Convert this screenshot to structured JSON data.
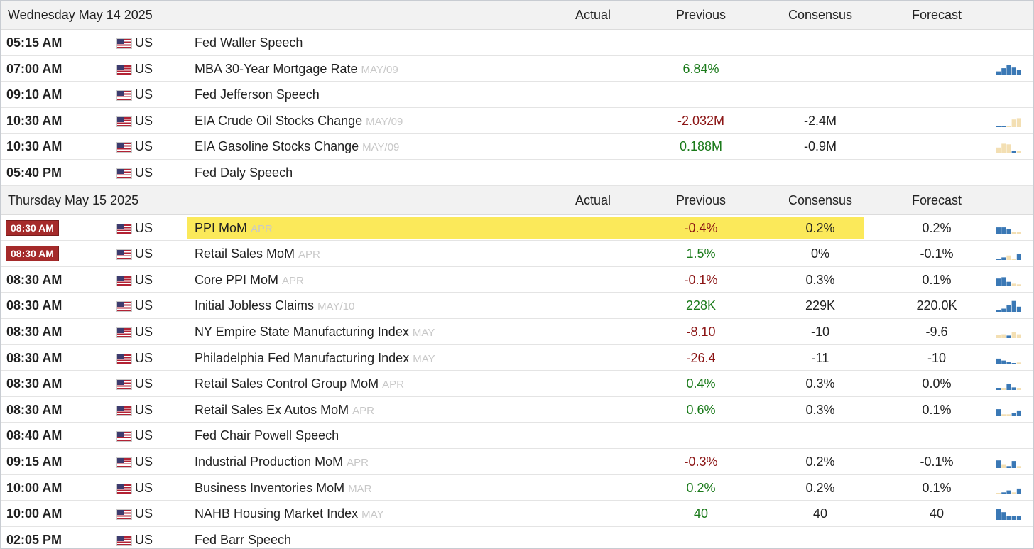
{
  "columns": {
    "actual": "Actual",
    "previous": "Previous",
    "consensus": "Consensus",
    "forecast": "Forecast"
  },
  "colors": {
    "positive": "#1a7a1a",
    "negative": "#8b1414",
    "highlight": "#fbe95a",
    "live_time": "#a52a2a",
    "spark_blue": "#3a78b5",
    "spark_tan": "#f3dfb3"
  },
  "days": [
    {
      "date": "Wednesday May 14 2025",
      "rows": [
        {
          "time": "05:15 AM",
          "country": "US",
          "event": "Fed Waller Speech",
          "ref": "",
          "previous": "",
          "previous_sentiment": "",
          "consensus": "",
          "forecast": "",
          "spark": []
        },
        {
          "time": "07:00 AM",
          "country": "US",
          "event": "MBA 30-Year Mortgage Rate",
          "ref": "MAY/09",
          "previous": "6.84%",
          "previous_sentiment": "pos",
          "consensus": "",
          "forecast": "",
          "spark": [
            {
              "v": 0.3,
              "c": "b"
            },
            {
              "v": 0.55,
              "c": "b"
            },
            {
              "v": 0.8,
              "c": "b"
            },
            {
              "v": 0.6,
              "c": "b"
            },
            {
              "v": 0.4,
              "c": "b"
            }
          ]
        },
        {
          "time": "09:10 AM",
          "country": "US",
          "event": "Fed Jefferson Speech",
          "ref": "",
          "previous": "",
          "previous_sentiment": "",
          "consensus": "",
          "forecast": "",
          "spark": []
        },
        {
          "time": "10:30 AM",
          "country": "US",
          "event": "EIA Crude Oil Stocks Change",
          "ref": "MAY/09",
          "previous": "-2.032M",
          "previous_sentiment": "neg",
          "consensus": "-2.4M",
          "forecast": "",
          "spark": [
            {
              "v": 0.1,
              "c": "b"
            },
            {
              "v": 0.1,
              "c": "b"
            },
            {
              "v": 0.0,
              "c": "t"
            },
            {
              "v": 0.6,
              "c": "t"
            },
            {
              "v": 0.7,
              "c": "t"
            }
          ]
        },
        {
          "time": "10:30 AM",
          "country": "US",
          "event": "EIA Gasoline Stocks Change",
          "ref": "MAY/09",
          "previous": "0.188M",
          "previous_sentiment": "pos",
          "consensus": "-0.9M",
          "forecast": "",
          "spark": [
            {
              "v": 0.4,
              "c": "t"
            },
            {
              "v": 0.7,
              "c": "t"
            },
            {
              "v": 0.65,
              "c": "t"
            },
            {
              "v": 0.1,
              "c": "b"
            },
            {
              "v": 0.0,
              "c": "t"
            }
          ]
        },
        {
          "time": "05:40 PM",
          "country": "US",
          "event": "Fed Daly Speech",
          "ref": "",
          "previous": "",
          "previous_sentiment": "",
          "consensus": "",
          "forecast": "",
          "spark": []
        }
      ]
    },
    {
      "date": "Thursday May 15 2025",
      "rows": [
        {
          "time": "08:30 AM",
          "live": true,
          "highlight": true,
          "country": "US",
          "event": "PPI MoM",
          "ref": "APR",
          "previous": "-0.4%",
          "previous_sentiment": "neg",
          "consensus": "0.2%",
          "forecast": "0.2%",
          "spark": [
            {
              "v": 0.55,
              "c": "b"
            },
            {
              "v": 0.55,
              "c": "b"
            },
            {
              "v": 0.4,
              "c": "b"
            },
            {
              "v": 0.2,
              "c": "t"
            },
            {
              "v": 0.2,
              "c": "t"
            }
          ]
        },
        {
          "time": "08:30 AM",
          "live": true,
          "country": "US",
          "event": "Retail Sales MoM",
          "ref": "APR",
          "previous": "1.5%",
          "previous_sentiment": "pos",
          "consensus": "0%",
          "forecast": "-0.1%",
          "spark": [
            {
              "v": 0.1,
              "c": "b"
            },
            {
              "v": 0.2,
              "c": "b"
            },
            {
              "v": 0.35,
              "c": "t"
            },
            {
              "v": 0.0,
              "c": "t"
            },
            {
              "v": 0.5,
              "c": "b"
            }
          ]
        },
        {
          "time": "08:30 AM",
          "country": "US",
          "event": "Core PPI MoM",
          "ref": "APR",
          "previous": "-0.1%",
          "previous_sentiment": "neg",
          "consensus": "0.3%",
          "forecast": "0.1%",
          "spark": [
            {
              "v": 0.6,
              "c": "b"
            },
            {
              "v": 0.7,
              "c": "b"
            },
            {
              "v": 0.35,
              "c": "b"
            },
            {
              "v": 0.2,
              "c": "t"
            },
            {
              "v": 0.15,
              "c": "t"
            }
          ]
        },
        {
          "time": "08:30 AM",
          "country": "US",
          "event": "Initial Jobless Claims",
          "ref": "MAY/10",
          "previous": "228K",
          "previous_sentiment": "pos",
          "consensus": "229K",
          "forecast": "220.0K",
          "spark": [
            {
              "v": 0.1,
              "c": "b"
            },
            {
              "v": 0.25,
              "c": "b"
            },
            {
              "v": 0.55,
              "c": "b"
            },
            {
              "v": 0.85,
              "c": "b"
            },
            {
              "v": 0.4,
              "c": "b"
            }
          ]
        },
        {
          "time": "08:30 AM",
          "country": "US",
          "event": "NY Empire State Manufacturing Index",
          "ref": "MAY",
          "previous": "-8.10",
          "previous_sentiment": "neg",
          "consensus": "-10",
          "forecast": "-9.6",
          "spark": [
            {
              "v": 0.25,
              "c": "t"
            },
            {
              "v": 0.3,
              "c": "t"
            },
            {
              "v": 0.2,
              "c": "b"
            },
            {
              "v": 0.45,
              "c": "t"
            },
            {
              "v": 0.3,
              "c": "t"
            }
          ]
        },
        {
          "time": "08:30 AM",
          "country": "US",
          "event": "Philadelphia Fed Manufacturing Index",
          "ref": "MAY",
          "previous": "-26.4",
          "previous_sentiment": "neg",
          "consensus": "-11",
          "forecast": "-10",
          "spark": [
            {
              "v": 0.45,
              "c": "b"
            },
            {
              "v": 0.3,
              "c": "b"
            },
            {
              "v": 0.2,
              "c": "b"
            },
            {
              "v": 0.1,
              "c": "b"
            },
            {
              "v": 0.15,
              "c": "t"
            }
          ]
        },
        {
          "time": "08:30 AM",
          "country": "US",
          "event": "Retail Sales Control Group MoM",
          "ref": "APR",
          "previous": "0.4%",
          "previous_sentiment": "pos",
          "consensus": "0.3%",
          "forecast": "0.0%",
          "spark": [
            {
              "v": 0.15,
              "c": "b"
            },
            {
              "v": 0.15,
              "c": "t"
            },
            {
              "v": 0.45,
              "c": "b"
            },
            {
              "v": 0.2,
              "c": "b"
            },
            {
              "v": 0.1,
              "c": "t"
            }
          ]
        },
        {
          "time": "08:30 AM",
          "country": "US",
          "event": "Retail Sales Ex Autos MoM",
          "ref": "APR",
          "previous": "0.6%",
          "previous_sentiment": "pos",
          "consensus": "0.3%",
          "forecast": "0.1%",
          "spark": [
            {
              "v": 0.55,
              "c": "b"
            },
            {
              "v": 0.15,
              "c": "t"
            },
            {
              "v": 0.15,
              "c": "t"
            },
            {
              "v": 0.25,
              "c": "b"
            },
            {
              "v": 0.45,
              "c": "b"
            }
          ]
        },
        {
          "time": "08:40 AM",
          "country": "US",
          "event": "Fed Chair Powell Speech",
          "ref": "",
          "previous": "",
          "previous_sentiment": "",
          "consensus": "",
          "forecast": "",
          "spark": []
        },
        {
          "time": "09:15 AM",
          "country": "US",
          "event": "Industrial Production MoM",
          "ref": "APR",
          "previous": "-0.3%",
          "previous_sentiment": "neg",
          "consensus": "0.2%",
          "forecast": "-0.1%",
          "spark": [
            {
              "v": 0.6,
              "c": "b"
            },
            {
              "v": 0.25,
              "c": "t"
            },
            {
              "v": 0.15,
              "c": "b"
            },
            {
              "v": 0.55,
              "c": "b"
            },
            {
              "v": 0.15,
              "c": "t"
            }
          ]
        },
        {
          "time": "10:00 AM",
          "country": "US",
          "event": "Business Inventories MoM",
          "ref": "MAR",
          "previous": "0.2%",
          "previous_sentiment": "pos",
          "consensus": "0.2%",
          "forecast": "0.1%",
          "spark": [
            {
              "v": 0.1,
              "c": "t"
            },
            {
              "v": 0.15,
              "c": "b"
            },
            {
              "v": 0.3,
              "c": "b"
            },
            {
              "v": 0.15,
              "c": "t"
            },
            {
              "v": 0.45,
              "c": "b"
            }
          ]
        },
        {
          "time": "10:00 AM",
          "country": "US",
          "event": "NAHB Housing Market Index",
          "ref": "MAY",
          "previous": "40",
          "previous_sentiment": "pos",
          "consensus": "40",
          "forecast": "40",
          "spark": [
            {
              "v": 0.85,
              "c": "b"
            },
            {
              "v": 0.6,
              "c": "b"
            },
            {
              "v": 0.3,
              "c": "b"
            },
            {
              "v": 0.3,
              "c": "b"
            },
            {
              "v": 0.3,
              "c": "b"
            }
          ]
        },
        {
          "time": "02:05 PM",
          "country": "US",
          "event": "Fed Barr Speech",
          "ref": "",
          "previous": "",
          "previous_sentiment": "",
          "consensus": "",
          "forecast": "",
          "spark": []
        }
      ]
    }
  ]
}
